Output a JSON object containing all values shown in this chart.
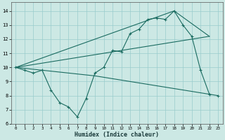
{
  "xlabel": "Humidex (Indice chaleur)",
  "background_color": "#cce8e4",
  "grid_color": "#99cccc",
  "line_color": "#1a6b60",
  "xlim": [
    -0.5,
    23.5
  ],
  "ylim": [
    6,
    14.6
  ],
  "yticks": [
    6,
    7,
    8,
    9,
    10,
    11,
    12,
    13,
    14
  ],
  "xticks": [
    0,
    1,
    2,
    3,
    4,
    5,
    6,
    7,
    8,
    9,
    10,
    11,
    12,
    13,
    14,
    15,
    16,
    17,
    18,
    19,
    20,
    21,
    22,
    23
  ],
  "line_main_x": [
    0,
    1,
    2,
    3,
    4,
    5,
    6,
    7,
    8,
    9,
    10,
    11,
    12,
    13,
    14,
    15,
    16,
    17,
    18,
    19,
    20,
    21,
    22,
    23
  ],
  "line_main_y": [
    10.0,
    9.8,
    9.6,
    9.8,
    8.4,
    7.5,
    7.2,
    6.5,
    7.8,
    9.6,
    10.0,
    11.2,
    11.1,
    12.4,
    12.7,
    13.4,
    13.5,
    13.4,
    14.0,
    13.0,
    12.2,
    9.8,
    8.1,
    8.0
  ],
  "straight_line1_x": [
    0,
    22
  ],
  "straight_line1_y": [
    10.0,
    12.2
  ],
  "straight_line2_x": [
    0,
    18,
    22
  ],
  "straight_line2_y": [
    10.0,
    14.0,
    12.2
  ],
  "straight_line3_x": [
    0,
    9,
    22
  ],
  "straight_line3_y": [
    10.0,
    9.4,
    8.1
  ]
}
